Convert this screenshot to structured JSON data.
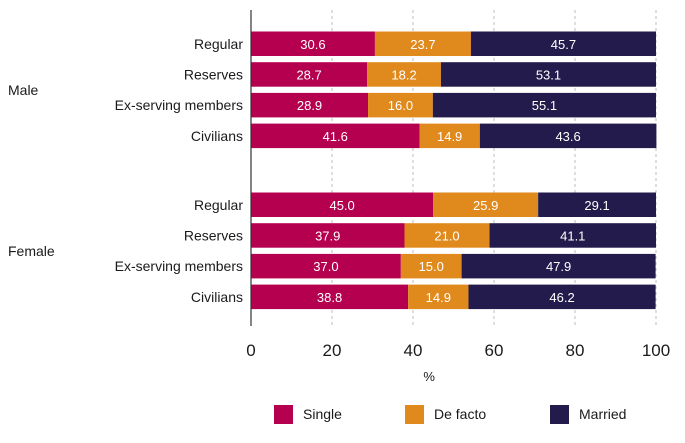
{
  "chart_data": {
    "type": "bar",
    "orientation": "horizontal",
    "stacked": true,
    "xlabel": "%",
    "xlim": [
      0,
      100
    ],
    "xticks": [
      "0",
      "20",
      "40",
      "60",
      "80",
      "100"
    ],
    "grid": "vertical dashed",
    "legend_placement": "bottom",
    "groups": [
      {
        "label": "Male",
        "categories": [
          "Regular",
          "Reserves",
          "Ex-serving members",
          "Civilians"
        ],
        "series": [
          {
            "name": "Single",
            "values": [
              30.6,
              28.7,
              28.9,
              41.6
            ]
          },
          {
            "name": "De facto",
            "values": [
              23.7,
              18.2,
              16.0,
              14.9
            ]
          },
          {
            "name": "Married",
            "values": [
              45.7,
              53.1,
              55.1,
              43.6
            ]
          }
        ]
      },
      {
        "label": "Female",
        "categories": [
          "Regular",
          "Reserves",
          "Ex-serving members",
          "Civilians"
        ],
        "series": [
          {
            "name": "Single",
            "values": [
              45.0,
              37.9,
              37.0,
              38.8
            ]
          },
          {
            "name": "De facto",
            "values": [
              25.9,
              21.0,
              15.0,
              14.9
            ]
          },
          {
            "name": "Married",
            "values": [
              29.1,
              41.1,
              47.9,
              46.2
            ]
          }
        ]
      }
    ],
    "colors": {
      "Single": "#b5004f",
      "De facto": "#e08a1e",
      "Married": "#221b4b"
    }
  }
}
